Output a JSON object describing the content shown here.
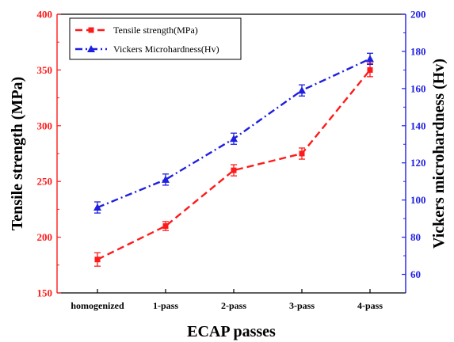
{
  "chart_data": {
    "type": "line",
    "categories": [
      "homogenized",
      "1-pass",
      "2-pass",
      "3-pass",
      "4-pass"
    ],
    "xlabel": "ECAP passes",
    "ylabel": "Tensile strength (MPa)",
    "y2label": "Vickers microhardness (Hv)",
    "ylim": [
      150,
      400
    ],
    "y2lim": [
      50,
      200
    ],
    "yticks": [
      150,
      200,
      250,
      300,
      350,
      400
    ],
    "y2ticks": [
      60,
      80,
      100,
      120,
      140,
      160,
      180,
      200
    ],
    "legend_position": "top-left",
    "grid": false,
    "series": [
      {
        "name": "Tensile strength(MPa)",
        "axis": "left",
        "color": "#ff1a1a",
        "line_style": "dashed",
        "marker": "square",
        "values": [
          180,
          210,
          260,
          275,
          350
        ],
        "errors": [
          6,
          4,
          5,
          5,
          6
        ]
      },
      {
        "name": "Vickers Microhardness(Hv)",
        "axis": "right",
        "color": "#1f1fe0",
        "line_style": "dash-dot",
        "marker": "triangle",
        "values": [
          96,
          111,
          133,
          159,
          176
        ],
        "errors": [
          3,
          3,
          3,
          3,
          3
        ]
      }
    ]
  }
}
